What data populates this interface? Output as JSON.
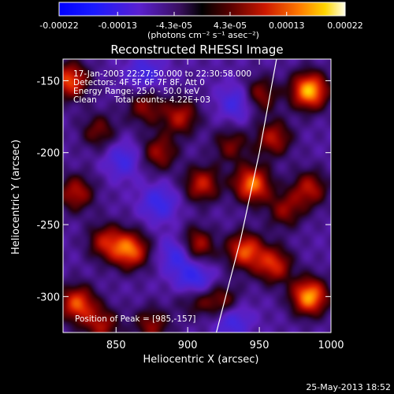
{
  "chart_data": {
    "type": "heatmap",
    "title": "Reconstructed RHESSI Image",
    "xlabel": "Heliocentric X (arcsec)",
    "ylabel": "Heliocentric Y (arcsec)",
    "xlim": [
      813,
      1000
    ],
    "ylim": [
      -325,
      -135
    ],
    "x_ticks": [
      850,
      900,
      950,
      1000
    ],
    "y_ticks": [
      -150,
      -200,
      -250,
      -300
    ],
    "colorbar": {
      "min": -0.00022,
      "max": 0.00022,
      "tick_values": [
        -0.00022,
        -0.00013,
        -4.3e-05,
        4.3e-05,
        0.00013,
        0.00022
      ],
      "tick_labels": [
        "-0.00022",
        "-0.00013",
        "-4.3e-05",
        "4.3e-05",
        "0.00013",
        "0.00022"
      ],
      "unit_label": "(photons cm⁻² s⁻¹ asec⁻²)"
    },
    "annotations": {
      "time_range": "17-Jan-2003 22:27:50.000 to 22:30:58.000",
      "detectors": "Detectors: 4F 5F 6F 7F 8F, Att 0",
      "energy": "Energy Range: 25.0 - 50.0 keV",
      "method": "Clean",
      "counts": "Total counts: 4.22E+03",
      "peak": "Position of Peak = [985,-157]"
    },
    "limb_curve": [
      [
        962,
        -135
      ],
      [
        950,
        -200
      ],
      [
        937,
        -260
      ],
      [
        920,
        -325
      ]
    ],
    "peak": [
      985,
      -157
    ],
    "intensity_blobs": [
      {
        "x": 985,
        "y": -157,
        "v": 1.0
      },
      {
        "x": 985,
        "y": -300,
        "v": 0.95
      },
      {
        "x": 818,
        "y": -150,
        "v": 0.75
      },
      {
        "x": 823,
        "y": -305,
        "v": 0.75
      },
      {
        "x": 822,
        "y": -228,
        "v": 0.55
      },
      {
        "x": 860,
        "y": -268,
        "v": 0.8
      },
      {
        "x": 843,
        "y": -262,
        "v": 0.55
      },
      {
        "x": 945,
        "y": -222,
        "v": 0.85
      },
      {
        "x": 940,
        "y": -268,
        "v": 0.75
      },
      {
        "x": 960,
        "y": -278,
        "v": 0.65
      },
      {
        "x": 905,
        "y": -265,
        "v": 0.7
      },
      {
        "x": 910,
        "y": -222,
        "v": 0.6
      },
      {
        "x": 895,
        "y": -175,
        "v": 0.55
      },
      {
        "x": 880,
        "y": -200,
        "v": 0.5
      },
      {
        "x": 925,
        "y": -305,
        "v": 0.55
      },
      {
        "x": 905,
        "y": -300,
        "v": 0.45
      },
      {
        "x": 960,
        "y": -190,
        "v": 0.55
      },
      {
        "x": 870,
        "y": -168,
        "v": 0.45
      },
      {
        "x": 950,
        "y": -160,
        "v": 0.5
      },
      {
        "x": 968,
        "y": -240,
        "v": 0.45
      },
      {
        "x": 838,
        "y": -185,
        "v": 0.4
      },
      {
        "x": 840,
        "y": -320,
        "v": 0.5
      },
      {
        "x": 875,
        "y": -320,
        "v": 0.45
      },
      {
        "x": 985,
        "y": -225,
        "v": 0.55
      },
      {
        "x": 930,
        "y": -195,
        "v": 0.4
      },
      {
        "x": 895,
        "y": -270,
        "v": -0.55
      },
      {
        "x": 905,
        "y": -290,
        "v": -0.6
      },
      {
        "x": 930,
        "y": -315,
        "v": -0.5
      },
      {
        "x": 870,
        "y": -145,
        "v": -0.35
      },
      {
        "x": 880,
        "y": -235,
        "v": -0.4
      },
      {
        "x": 935,
        "y": -165,
        "v": -0.4
      },
      {
        "x": 855,
        "y": -205,
        "v": -0.35
      }
    ]
  },
  "footer": {
    "date": "25-May-2013 18:52"
  }
}
